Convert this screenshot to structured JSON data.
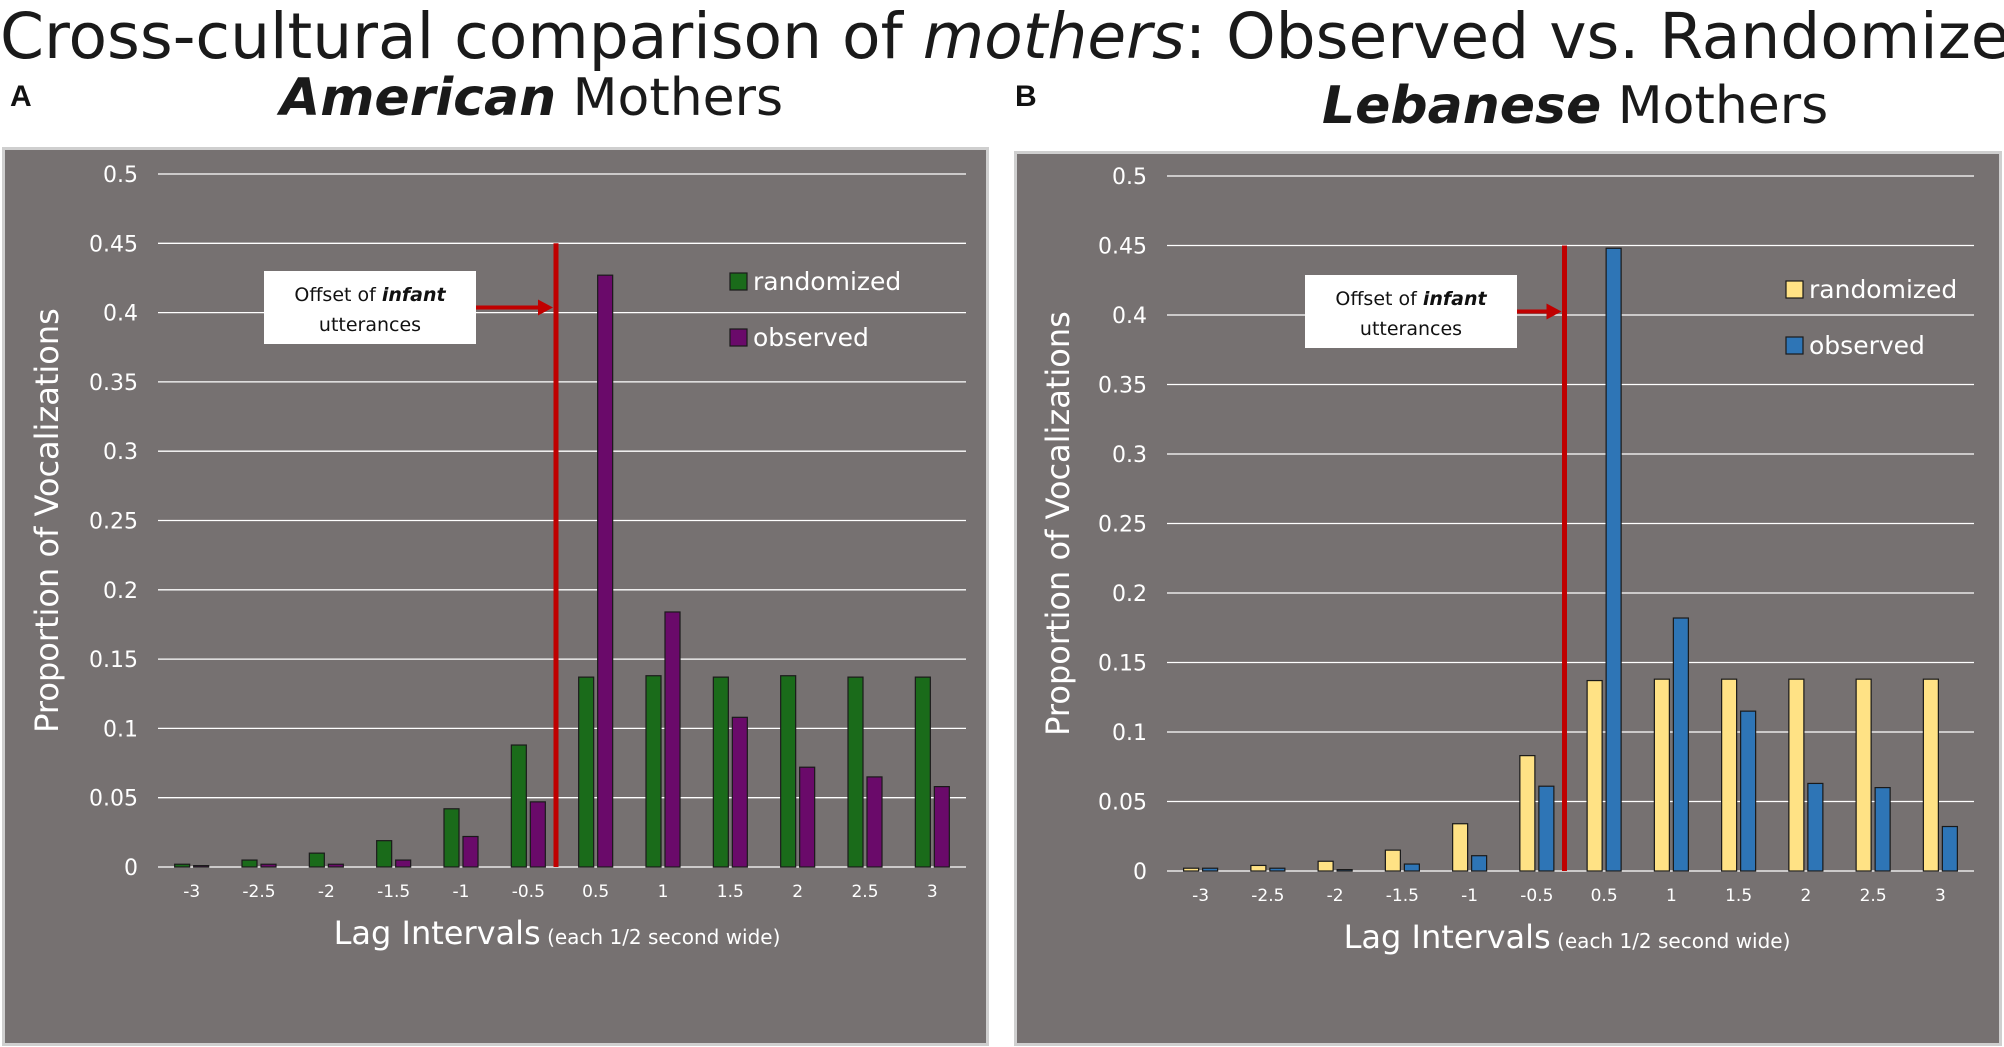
{
  "title": {
    "prefix": "Cross-cultural comparison of ",
    "emph": "mothers",
    "suffix": ": Observed vs. Randomized"
  },
  "chart_data": [
    {
      "type": "bar",
      "panel_label": "A",
      "title_bold": "American",
      "title_rest": " Mothers",
      "categories": [
        "-3",
        "-2.5",
        "-2",
        "-1.5",
        "-1",
        "-0.5",
        "0.5",
        "1",
        "1.5",
        "2",
        "2.5",
        "3"
      ],
      "series": [
        {
          "name": "randomized",
          "color": "#1a6b1a",
          "values": [
            0.002,
            0.005,
            0.01,
            0.019,
            0.042,
            0.088,
            0.137,
            0.138,
            0.137,
            0.138,
            0.137,
            0.137
          ]
        },
        {
          "name": "observed",
          "color": "#6a0a6a",
          "values": [
            0.001,
            0.002,
            0.002,
            0.005,
            0.022,
            0.047,
            0.427,
            0.184,
            0.108,
            0.072,
            0.065,
            0.058
          ]
        }
      ],
      "ylabel": "Proportion of Vocalizations",
      "xlabel_main": "Lag Intervals",
      "xlabel_note": " (each 1/2 second wide)",
      "ylim": [
        0,
        0.5
      ],
      "yticks": [
        "0",
        "0.05",
        "0.1",
        "0.15",
        "0.2",
        "0.25",
        "0.3",
        "0.35",
        "0.4",
        "0.45",
        "0.5"
      ],
      "annotation": {
        "line1_prefix": "Offset of ",
        "line1_emph": "infant",
        "line2": "utterances"
      },
      "offset_marker_color": "#c00000",
      "background": "#767171",
      "legend_position": "top-right"
    },
    {
      "type": "bar",
      "panel_label": "B",
      "title_bold": "Lebanese",
      "title_rest": " Mothers",
      "categories": [
        "-3",
        "-2.5",
        "-2",
        "-1.5",
        "-1",
        "-0.5",
        "0.5",
        "1",
        "1.5",
        "2",
        "2.5",
        "3"
      ],
      "series": [
        {
          "name": "randomized",
          "color": "#ffe285",
          "values": [
            0.002,
            0.004,
            0.007,
            0.015,
            0.034,
            0.083,
            0.137,
            0.138,
            0.138,
            0.138,
            0.138,
            0.138
          ]
        },
        {
          "name": "observed",
          "color": "#2e75b6",
          "values": [
            0.002,
            0.002,
            0.001,
            0.005,
            0.011,
            0.061,
            0.448,
            0.182,
            0.115,
            0.063,
            0.06,
            0.032
          ]
        }
      ],
      "ylabel": "Proportion of Vocalizations",
      "xlabel_main": "Lag Intervals",
      "xlabel_note": " (each 1/2 second wide)",
      "ylim": [
        0,
        0.5
      ],
      "yticks": [
        "0",
        "0.05",
        "0.1",
        "0.15",
        "0.2",
        "0.25",
        "0.3",
        "0.35",
        "0.4",
        "0.45",
        "0.5"
      ],
      "annotation": {
        "line1_prefix": "Offset of ",
        "line1_emph": "infant",
        "line2": "utterances"
      },
      "offset_marker_color": "#c00000",
      "background": "#767171",
      "legend_position": "top-right"
    }
  ]
}
